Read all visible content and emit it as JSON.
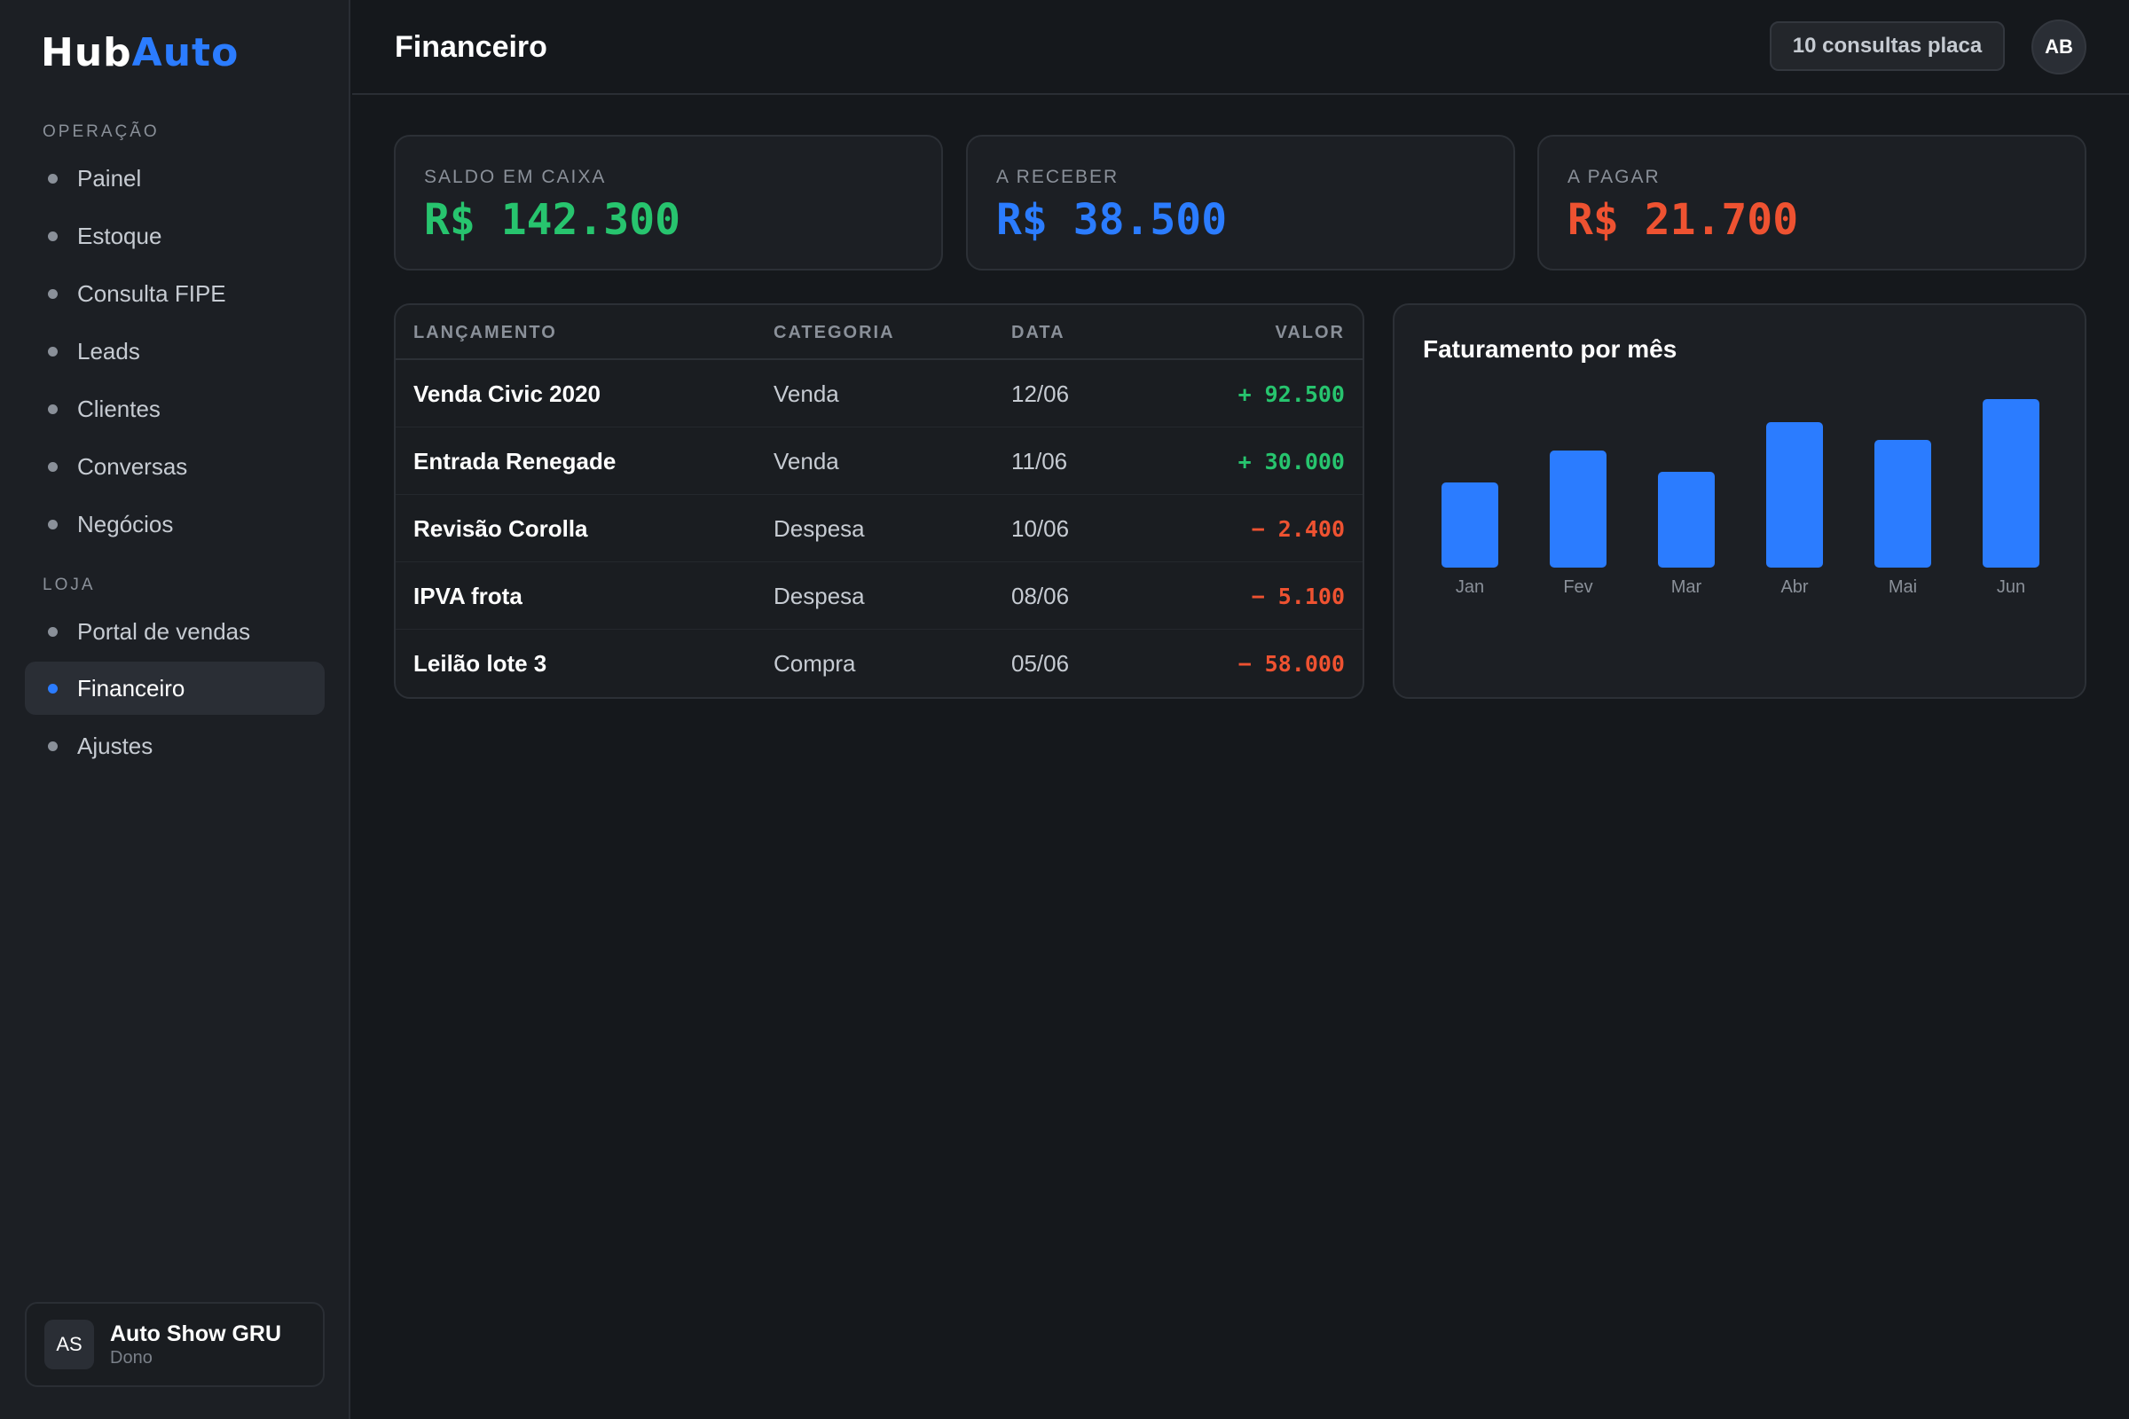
{
  "app": {
    "logo_part1": "Hub",
    "logo_part2": "Auto"
  },
  "sidebar": {
    "section_operacao": "OPERAÇÃO",
    "section_loja": "LOJA",
    "items": [
      {
        "label": "Painel"
      },
      {
        "label": "Estoque"
      },
      {
        "label": "Consulta FIPE"
      },
      {
        "label": "Leads"
      },
      {
        "label": "Clientes"
      },
      {
        "label": "Conversas"
      },
      {
        "label": "Negócios"
      },
      {
        "label": "Portal de vendas"
      },
      {
        "label": "Financeiro",
        "active": true
      },
      {
        "label": "Ajustes"
      }
    ],
    "store": {
      "initials": "AS",
      "name": "Auto Show GRU",
      "role": "Dono"
    }
  },
  "header": {
    "title": "Financeiro",
    "quota": "10 consultas placa",
    "user_initials": "AB"
  },
  "stats": [
    {
      "label": "SALDO EM CAIXA",
      "value": "R$ 142.300",
      "color": "#27c46e"
    },
    {
      "label": "A RECEBER",
      "value": "R$ 38.500",
      "color": "#2b7cff"
    },
    {
      "label": "A PAGAR",
      "value": "R$ 21.700",
      "color": "#ee5231"
    }
  ],
  "table": {
    "columns": [
      "LANÇAMENTO",
      "CATEGORIA",
      "DATA",
      "VALOR"
    ],
    "rows": [
      {
        "desc": "Venda Civic 2020",
        "cat": "Venda",
        "date": "12/06",
        "value": "+ 92.500",
        "type": "pos"
      },
      {
        "desc": "Entrada Renegade",
        "cat": "Venda",
        "date": "11/06",
        "value": "+ 30.000",
        "type": "pos"
      },
      {
        "desc": "Revisão Corolla",
        "cat": "Despesa",
        "date": "10/06",
        "value": "− 2.400",
        "type": "neg"
      },
      {
        "desc": "IPVA frota",
        "cat": "Despesa",
        "date": "08/06",
        "value": "− 5.100",
        "type": "neg"
      },
      {
        "desc": "Leilão lote 3",
        "cat": "Compra",
        "date": "05/06",
        "value": "− 58.000",
        "type": "neg"
      }
    ]
  },
  "chart_data": {
    "type": "bar",
    "title": "Faturamento por mês",
    "categories": [
      "Jan",
      "Fev",
      "Mar",
      "Abr",
      "Mai",
      "Jun"
    ],
    "values": [
      48,
      66,
      54,
      82,
      72,
      95
    ],
    "ylim": [
      0,
      100
    ],
    "grid": false,
    "bar_color": "#2b7cff"
  }
}
